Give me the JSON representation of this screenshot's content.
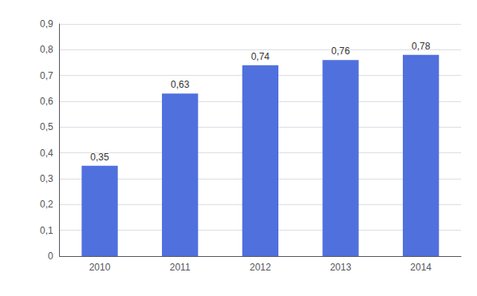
{
  "chart_data": {
    "type": "bar",
    "categories": [
      "2010",
      "2011",
      "2012",
      "2013",
      "2014"
    ],
    "values": [
      0.35,
      0.63,
      0.74,
      0.76,
      0.78
    ],
    "value_labels": [
      "0,35",
      "0,63",
      "0,74",
      "0,76",
      "0,78"
    ],
    "ylim": [
      0,
      0.9
    ],
    "yticks": [
      0,
      {
        "value": 0.1,
        "label": "0,1"
      },
      {
        "value": 0.2,
        "label": "0,2"
      },
      {
        "value": 0.3,
        "label": "0,3"
      },
      {
        "value": 0.4,
        "label": "0,4"
      },
      {
        "value": 0.5,
        "label": "0,5"
      },
      {
        "value": 0.6,
        "label": "0,6"
      },
      {
        "value": 0.7,
        "label": "0,7"
      },
      {
        "value": 0.8,
        "label": "0,8"
      },
      {
        "value": 0.9,
        "label": "0,9"
      }
    ],
    "grid": true
  }
}
